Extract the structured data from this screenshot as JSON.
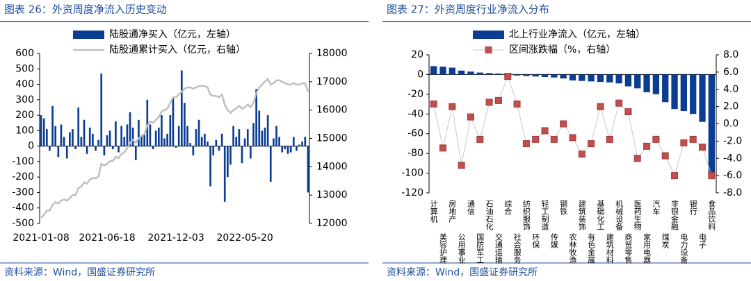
{
  "chart_data": [
    {
      "type": "bar_line",
      "title": "图表 26：外资周度净流入历史变动",
      "source": "资料来源：Wind，国盛证券研究所",
      "categories": [
        "2021-01-08",
        null,
        null,
        null,
        null,
        null,
        null,
        null,
        null,
        null,
        null,
        null,
        null,
        null,
        null,
        null,
        null,
        null,
        null,
        null,
        null,
        null,
        null,
        "2021-06-18",
        null,
        null,
        null,
        null,
        null,
        null,
        null,
        null,
        null,
        null,
        null,
        null,
        null,
        null,
        null,
        null,
        null,
        null,
        null,
        null,
        null,
        null,
        null,
        "2021-12-03",
        null,
        null,
        null,
        null,
        null,
        null,
        null,
        null,
        null,
        null,
        null,
        null,
        null,
        null,
        null,
        null,
        null,
        null,
        null,
        null,
        null,
        null,
        null,
        "2022-05-20",
        null,
        null,
        null,
        null,
        null,
        null,
        null,
        null,
        null,
        null,
        null,
        null,
        null,
        null,
        null,
        null,
        null,
        null,
        null,
        null,
        null,
        null
      ],
      "series": [
        {
          "name": "陆股通净买入（亿元，左轴）",
          "color": "#0b3e92",
          "type": "bar",
          "values": [
            200,
            180,
            110,
            -30,
            260,
            130,
            -70,
            140,
            60,
            -80,
            90,
            110,
            -20,
            250,
            60,
            170,
            -50,
            120,
            80,
            -30,
            40,
            470,
            -60,
            70,
            100,
            -20,
            160,
            -40,
            130,
            60,
            140,
            220,
            120,
            -90,
            170,
            70,
            80,
            300,
            140,
            -20,
            100,
            120,
            200,
            50,
            80,
            200,
            320,
            -10,
            130,
            490,
            280,
            130,
            20,
            -60,
            110,
            170,
            60,
            80,
            30,
            -260,
            -60,
            40,
            -30,
            80,
            -360,
            -200,
            -120,
            130,
            60,
            110,
            -110,
            50,
            110,
            -80,
            150,
            370,
            230,
            100,
            120,
            200,
            -230,
            50,
            130,
            60,
            -40,
            -20,
            -50,
            -40,
            60,
            -30,
            10,
            30,
            60,
            -300
          ]
        },
        {
          "name": "陆股通累计买入（亿元，右轴）",
          "color": "#bfbfbf",
          "type": "line",
          "axis": "y2",
          "values": [
            12200,
            12300,
            12450,
            12450,
            12650,
            12750,
            12700,
            12800,
            12850,
            12800,
            12900,
            13000,
            13000,
            13250,
            13300,
            13450,
            13400,
            13550,
            13600,
            13600,
            13650,
            14100,
            14050,
            14100,
            14200,
            14200,
            14350,
            14300,
            14450,
            14500,
            14650,
            14850,
            14950,
            14850,
            15000,
            15100,
            15150,
            15450,
            15600,
            15550,
            15650,
            15750,
            15950,
            16000,
            16050,
            16250,
            16450,
            16450,
            16550,
            16650,
            16750,
            16800,
            16800,
            16750,
            16800,
            16850,
            16850,
            16850,
            16800,
            16550,
            16500,
            16500,
            16450,
            16550,
            16200,
            16000,
            15900,
            16000,
            16050,
            16150,
            16050,
            16100,
            16200,
            16100,
            16250,
            16600,
            16800,
            16900,
            17000,
            17100,
            16900,
            16950,
            17050,
            17050,
            17000,
            16950,
            16900,
            16900,
            16950,
            16900,
            16900,
            16950,
            16950,
            16650
          ]
        }
      ],
      "ylim": [
        -500,
        600
      ],
      "yticks": [
        -500,
        -400,
        -300,
        -200,
        -100,
        0,
        100,
        200,
        300,
        400,
        500,
        600
      ],
      "y2lim": [
        12000,
        18000
      ],
      "y2ticks": [
        12000,
        13000,
        14000,
        15000,
        16000,
        17000,
        18000
      ]
    },
    {
      "type": "bar_scatter",
      "title": "图表 27：外资周度行业净流入分布",
      "source": "资料来源：Wind，国盛证券研究所",
      "categories": [
        "计算机",
        "美容护理",
        "房地产",
        "公用事业",
        "通信",
        "国防军工",
        "石油石化",
        "交通运输",
        "综合",
        "社会服务",
        "纺织服饰",
        "环保",
        "轻工制造",
        "传媒",
        "钢铁",
        "农林牧渔",
        "建筑装饰",
        "有色金属",
        "基础化工",
        "建筑材料",
        "机械设备",
        "商贸零售",
        "医药生物",
        "家用电器",
        "汽车",
        "煤炭",
        "非银金融",
        "电力设备",
        "银行",
        "电子",
        "食品饮料"
      ],
      "series": [
        {
          "name": "北上行业净流入（亿元，左轴）",
          "color": "#0b3e92",
          "type": "bar",
          "values": [
            8.5,
            8,
            7,
            4,
            3,
            2,
            1.5,
            1,
            0.5,
            -1,
            -1.5,
            -2,
            -2.5,
            -3,
            -4,
            -6,
            -6.5,
            -7,
            -7.5,
            -8,
            -9,
            -12,
            -14,
            -18,
            -20,
            -28,
            -35,
            -37,
            -40,
            -48,
            -100
          ]
        },
        {
          "name": "区间涨跌幅（%，右轴）",
          "color": "#c0504d",
          "line_color": "#c8c8c8",
          "type": "scatter_line",
          "axis": "y2",
          "values": [
            2.3,
            -2.8,
            2.0,
            -4.8,
            0.8,
            -1.8,
            2.5,
            2.7,
            5.5,
            2.3,
            -2.3,
            -1.8,
            -0.8,
            -1.8,
            0.0,
            -1.6,
            -3.5,
            -2.3,
            2.0,
            -1.8,
            2.4,
            1.4,
            -4.0,
            -2.6,
            -1.8,
            -3.7,
            -6.0,
            -2.2,
            -1.8,
            -2.7,
            -6.0
          ]
        }
      ],
      "ylim": [
        -120,
        20
      ],
      "yticks": [
        -120,
        -100,
        -80,
        -60,
        -40,
        -20,
        0,
        20
      ],
      "y2lim": [
        -8,
        8
      ],
      "y2ticks": [
        {
          "value": -8,
          "label": "-8.0"
        },
        {
          "value": -6,
          "label": "-6.0"
        },
        {
          "value": -4,
          "label": "-4.0"
        },
        {
          "value": -2,
          "label": "-2.0"
        },
        {
          "value": 0,
          "label": "0.0"
        },
        {
          "value": 2,
          "label": "2.0"
        },
        {
          "value": 4,
          "label": "4.0"
        },
        {
          "value": 6,
          "label": "6.0"
        },
        {
          "value": 8,
          "label": "8.0"
        }
      ]
    }
  ]
}
